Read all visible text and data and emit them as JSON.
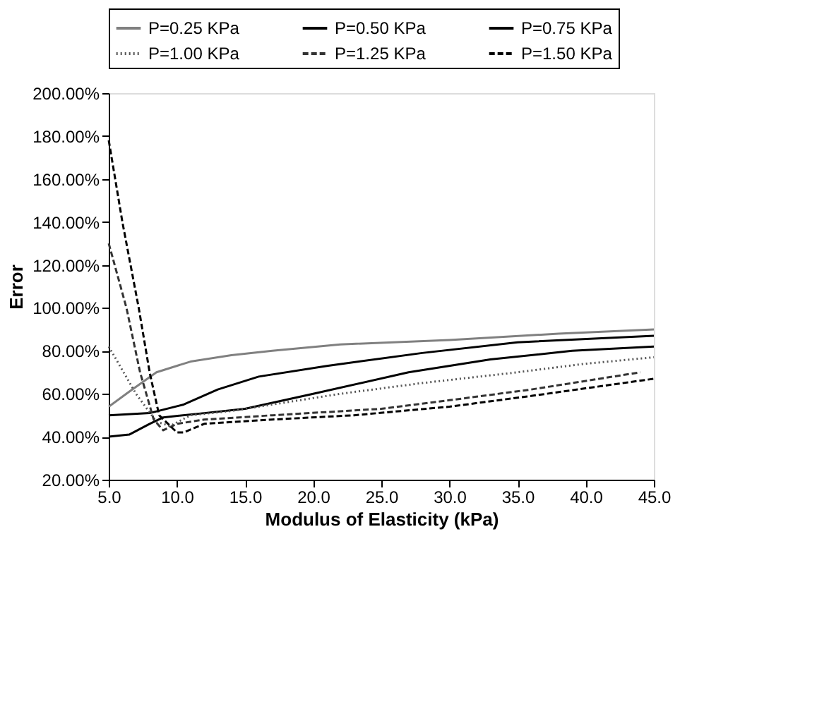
{
  "chart_data": {
    "type": "line",
    "xlabel": "Modulus of Elasticity (kPa)",
    "ylabel": "Error",
    "xlim": [
      5,
      45
    ],
    "xticks": [
      {
        "value": 5,
        "label": "5.0"
      },
      {
        "value": 10,
        "label": "10.0"
      },
      {
        "value": 15,
        "label": "15.0"
      },
      {
        "value": 20,
        "label": "20.0"
      },
      {
        "value": 25,
        "label": "25.0"
      },
      {
        "value": 30,
        "label": "30.0"
      },
      {
        "value": 35,
        "label": "35.0"
      },
      {
        "value": 40,
        "label": "40.0"
      },
      {
        "value": 45,
        "label": "45.0"
      }
    ],
    "ylim": [
      20,
      200
    ],
    "yticks": [
      {
        "value": 20,
        "label": "20.00%"
      },
      {
        "value": 40,
        "label": "40.00%"
      },
      {
        "value": 60,
        "label": "60.00%"
      },
      {
        "value": 80,
        "label": "80.00%"
      },
      {
        "value": 100,
        "label": "100.00%"
      },
      {
        "value": 120,
        "label": "120.00%"
      },
      {
        "value": 140,
        "label": "140.00%"
      },
      {
        "value": 160,
        "label": "160.00%"
      },
      {
        "value": 180,
        "label": "180.00%"
      },
      {
        "value": 200,
        "label": "200.00%"
      }
    ],
    "grid": false,
    "legend": "top",
    "marker": "none",
    "series": [
      {
        "name": "P=0.25 KPa",
        "color": "#808080",
        "line_style": "solid",
        "x": [
          5,
          6.5,
          8.5,
          11,
          14,
          17,
          22,
          30,
          38,
          45
        ],
        "values": [
          54,
          61,
          70,
          75,
          78,
          80,
          83,
          85,
          88,
          90
        ]
      },
      {
        "name": "P=0.50 KPa",
        "color": "#000000",
        "line_style": "solid",
        "x": [
          5,
          8,
          10.5,
          13,
          16,
          21,
          28,
          35,
          45
        ],
        "values": [
          50,
          51,
          55,
          62,
          68,
          73,
          79,
          84,
          87
        ]
      },
      {
        "name": "P=0.75 KPa",
        "color": "#000000",
        "line_style": "solid",
        "x": [
          5,
          6.5,
          8,
          9,
          12,
          15,
          20,
          27,
          33,
          39,
          45
        ],
        "values": [
          40,
          41,
          46,
          49,
          51,
          53,
          60,
          70,
          76,
          80,
          82
        ]
      },
      {
        "name": "P=1.00 KPa",
        "color": "#555555",
        "line_style": "dotted",
        "x": [
          5,
          7,
          8.5,
          9.5,
          11,
          14,
          17,
          22,
          28,
          35,
          40,
          45
        ],
        "values": [
          82,
          60,
          47,
          45,
          50,
          52,
          55,
          60,
          65,
          70,
          74,
          77
        ]
      },
      {
        "name": "P=1.25 KPa",
        "color": "#333333",
        "line_style": "dashed",
        "x": [
          5,
          6.3,
          7.3,
          8.3,
          9,
          10,
          12,
          17,
          25,
          30,
          36,
          44
        ],
        "values": [
          130,
          100,
          70,
          48,
          43,
          46,
          48,
          50,
          53,
          57,
          62,
          70
        ]
      },
      {
        "name": "P=1.50 KPa",
        "color": "#000000",
        "line_style": "dashed",
        "x": [
          5,
          6,
          7.2,
          8,
          8.7,
          10,
          10.5,
          12,
          17,
          23,
          30,
          36,
          45
        ],
        "values": [
          178,
          140,
          100,
          70,
          50,
          42,
          42,
          46,
          48,
          50,
          54,
          59,
          67
        ]
      }
    ]
  }
}
